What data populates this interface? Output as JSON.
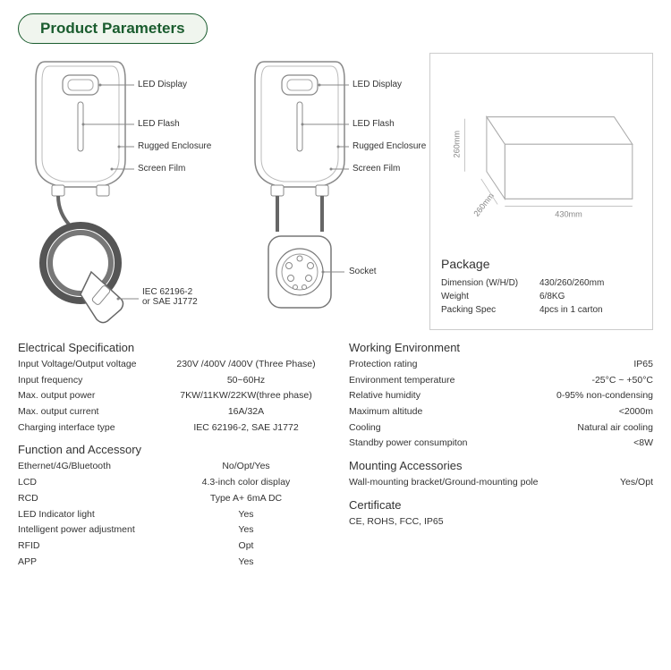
{
  "title": "Product Parameters",
  "diagram_labels": {
    "led_display": "LED Display",
    "led_flash": "LED Flash",
    "rugged_enclosure": "Rugged Enclosure",
    "screen_film": "Screen Film",
    "connector": "IEC 62196-2\nor SAE J1772",
    "socket": "Socket"
  },
  "package": {
    "title": "Package",
    "box_w": "430mm",
    "box_h": "260mm",
    "box_d": "260mm",
    "rows": [
      {
        "label": "Dimension (W/H/D)",
        "value": "430/260/260mm"
      },
      {
        "label": "Weight",
        "value": "6/8KG"
      },
      {
        "label": "Packing Spec",
        "value": "4pcs in 1 carton"
      }
    ]
  },
  "specs_left": [
    {
      "heading": "Electrical Specification",
      "rows": [
        {
          "label": "Input Voltage/Output voltage",
          "value": "230V /400V /400V (Three Phase)"
        },
        {
          "label": "Input frequency",
          "value": "50~60Hz"
        },
        {
          "label": "Max. output power",
          "value": "7KW/11KW/22KW(three phase)"
        },
        {
          "label": "Max. output current",
          "value": "16A/32A"
        },
        {
          "label": "Charging interface type",
          "value": "IEC 62196-2, SAE J1772"
        }
      ]
    },
    {
      "heading": "Function and Accessory",
      "rows": [
        {
          "label": "Ethernet/4G/Bluetooth",
          "value": "No/Opt/Yes"
        },
        {
          "label": "LCD",
          "value": "4.3-inch color display"
        },
        {
          "label": "RCD",
          "value": "Type A+ 6mA DC"
        },
        {
          "label": "LED Indicator light",
          "value": "Yes"
        },
        {
          "label": "Intelligent power adjustment",
          "value": "Yes"
        },
        {
          "label": "RFID",
          "value": "Opt"
        },
        {
          "label": "APP",
          "value": "Yes"
        }
      ]
    }
  ],
  "specs_right": [
    {
      "heading": "Working Environment",
      "rows": [
        {
          "label": "Protection rating",
          "value": "IP65"
        },
        {
          "label": "Environment temperature",
          "value": "-25°C ~ +50°C"
        },
        {
          "label": "Relative humidity",
          "value": "0-95% non-condensing"
        },
        {
          "label": "Maximum altitude",
          "value": "<2000m"
        },
        {
          "label": "Cooling",
          "value": "Natural air cooling"
        },
        {
          "label": "Standby power consumpiton",
          "value": "<8W"
        }
      ]
    },
    {
      "heading": "Mounting Accessories",
      "rows": [
        {
          "label": "Wall-mounting bracket/Ground-mounting pole",
          "value": "Yes/Opt"
        }
      ]
    },
    {
      "heading": "Certificate",
      "rows": [
        {
          "label": "CE, ROHS, FCC, IP65",
          "value": ""
        }
      ]
    }
  ],
  "colors": {
    "title_border": "#1a5c2e",
    "title_bg": "#f0f5ee",
    "line": "#888888",
    "panel_border": "#cccccc"
  }
}
